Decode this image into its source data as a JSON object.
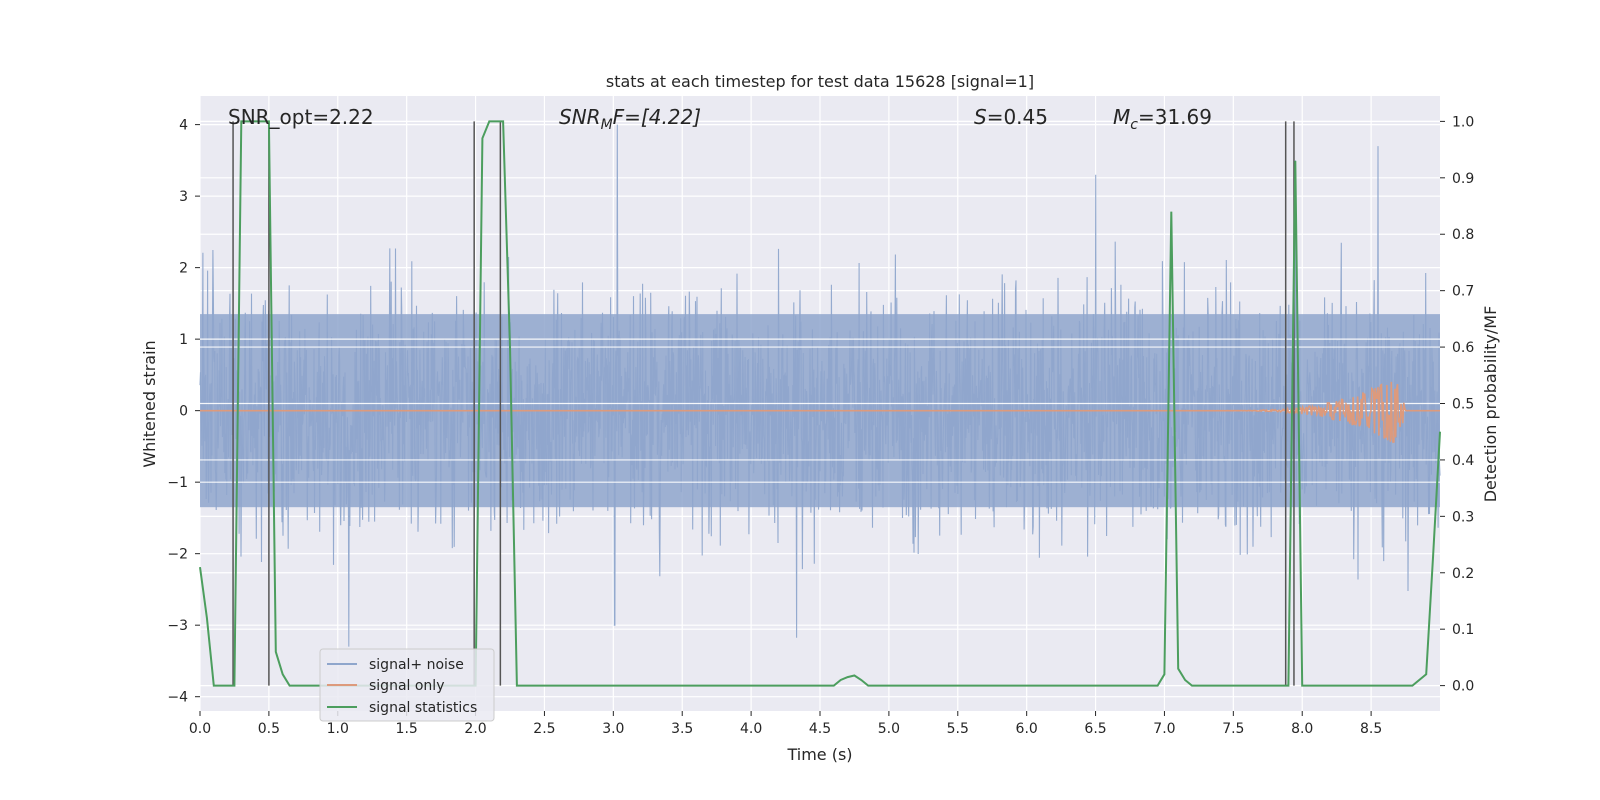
{
  "chart_data": {
    "type": "line",
    "title": "stats at each timestep for test data 15628 [signal=1]",
    "xlabel": "Time (s)",
    "ylabel": "Whitened strain",
    "y2label": "Detection probability/MF",
    "xlim": [
      0,
      9.0
    ],
    "ylim": [
      -4.2,
      4.4
    ],
    "y2lim": [
      -0.045,
      1.045
    ],
    "grid": true,
    "legend_position": "lower-left",
    "x_ticks": [
      "0.0",
      "0.5",
      "1.0",
      "1.5",
      "2.0",
      "2.5",
      "3.0",
      "3.5",
      "4.0",
      "4.5",
      "5.0",
      "5.5",
      "6.0",
      "6.5",
      "7.0",
      "7.5",
      "8.0",
      "8.5"
    ],
    "y_ticks": [
      "4",
      "3",
      "2",
      "1",
      "0",
      "−1",
      "−2",
      "−3",
      "−4"
    ],
    "y2_ticks": [
      "1.0",
      "0.9",
      "0.8",
      "0.7",
      "0.6",
      "0.5",
      "0.4",
      "0.3",
      "0.2",
      "0.1",
      "0.0"
    ],
    "annotations": {
      "snr_opt": "SNR_opt=2.22",
      "snr_mf_base": "SNR",
      "snr_mf_sub": "M",
      "snr_mf_rest": "F=[4.22]",
      "s_sym": "S",
      "s_rest": "=0.45",
      "mc_sym": "M",
      "mc_sub": "c",
      "mc_rest": "=31.69"
    },
    "noise_envelope": {
      "description_free": true,
      "typical_abs": 1.4,
      "max_peaks": [
        {
          "x": 3.03,
          "y": 4.0
        },
        {
          "x": 1.08,
          "y": -3.3
        },
        {
          "x": 3.01,
          "y": -3.0
        },
        {
          "x": 8.55,
          "y": 3.7
        },
        {
          "x": 7.95,
          "y": 3.5
        },
        {
          "x": 6.5,
          "y": 3.3
        }
      ]
    },
    "signal_only": {
      "chirp_center": 8.7,
      "peak_amplitude": 0.5
    },
    "vertical_markers": [
      0.24,
      0.5,
      1.99,
      2.18,
      7.88,
      7.94
    ],
    "series": [
      {
        "name": "signal+ noise",
        "axis": "left",
        "color": "#8fa6cc"
      },
      {
        "name": "signal only",
        "axis": "left",
        "color": "#dd9a7c"
      },
      {
        "name": "signal statistics",
        "axis": "right",
        "color": "#4c9e5e",
        "x": [
          0.0,
          0.05,
          0.1,
          0.15,
          0.2,
          0.25,
          0.3,
          0.35,
          0.4,
          0.45,
          0.5,
          0.55,
          0.6,
          0.65,
          0.7,
          1.9,
          2.0,
          2.05,
          2.1,
          2.15,
          2.2,
          2.25,
          2.3,
          2.35,
          4.5,
          4.6,
          4.65,
          4.7,
          4.75,
          4.8,
          4.85,
          4.9,
          6.8,
          6.95,
          7.0,
          7.05,
          7.1,
          7.15,
          7.2,
          7.85,
          7.9,
          7.95,
          8.0,
          8.05,
          8.8,
          8.9,
          8.95,
          9.0
        ],
        "values": [
          0.21,
          0.12,
          0.0,
          0.0,
          0.0,
          0.0,
          1.0,
          1.0,
          1.0,
          1.0,
          1.0,
          0.06,
          0.02,
          0.0,
          0.0,
          0.0,
          0.0,
          0.97,
          1.0,
          1.0,
          1.0,
          0.6,
          0.0,
          0.0,
          0.0,
          0.0,
          0.01,
          0.015,
          0.018,
          0.01,
          0.0,
          0.0,
          0.0,
          0.0,
          0.02,
          0.84,
          0.03,
          0.01,
          0.0,
          0.0,
          0.0,
          0.93,
          0.0,
          0.0,
          0.0,
          0.02,
          0.23,
          0.45
        ]
      }
    ]
  }
}
